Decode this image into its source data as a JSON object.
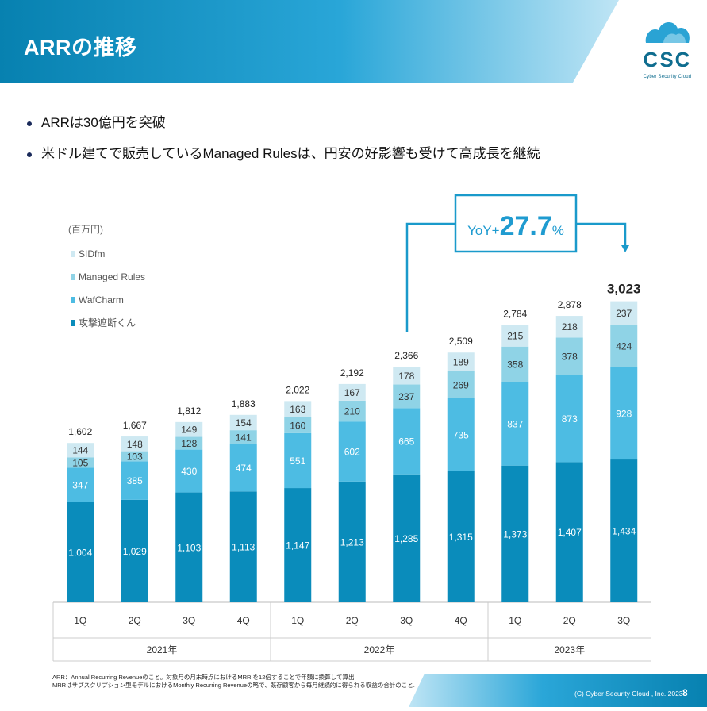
{
  "header": {
    "title": "ARRの推移"
  },
  "logo": {
    "text": "CSC",
    "subtitle": "Cyber Security Cloud"
  },
  "bullets": [
    "ARRは30億円を突破",
    "米ドル建てで販売しているManaged Rulesは、円安の好影響も受けて高成長を継続"
  ],
  "callout": {
    "prefix": "YoY+",
    "value": "27.7",
    "suffix": "%"
  },
  "colors": {
    "header_dark": "#0a86b4",
    "header_light": "#cfeaf6",
    "s1": "#0a8cbb",
    "s2": "#4dbce3",
    "s3": "#8fd3e6",
    "s4": "#cfe9f2",
    "callout_border": "#1a9acb",
    "callout_text": "#1f9bd0"
  },
  "chart_data": {
    "type": "bar",
    "stacked": true,
    "unit_label": "(百万円)",
    "categories": [
      "1Q",
      "2Q",
      "3Q",
      "4Q",
      "1Q",
      "2Q",
      "3Q",
      "4Q",
      "1Q",
      "2Q",
      "3Q"
    ],
    "year_groups": [
      {
        "label": "2021年",
        "count": 4
      },
      {
        "label": "2022年",
        "count": 4
      },
      {
        "label": "2023年",
        "count": 3
      }
    ],
    "series": [
      {
        "name": "攻撃遮断くん",
        "values": [
          1004,
          1029,
          1103,
          1113,
          1147,
          1213,
          1285,
          1315,
          1373,
          1407,
          1434
        ]
      },
      {
        "name": "WafCharm",
        "values": [
          347,
          385,
          430,
          474,
          551,
          602,
          665,
          735,
          837,
          873,
          928
        ]
      },
      {
        "name": "Managed Rules",
        "values": [
          105,
          103,
          128,
          141,
          160,
          210,
          237,
          269,
          358,
          378,
          424
        ]
      },
      {
        "name": "SIDfm",
        "values": [
          144,
          148,
          149,
          154,
          163,
          167,
          178,
          189,
          215,
          218,
          237
        ]
      }
    ],
    "totals": [
      "1,602",
      "1,667",
      "1,812",
      "1,883",
      "2,022",
      "2,192",
      "2,366",
      "2,509",
      "2,784",
      "2,878",
      "3,023"
    ],
    "ylim": [
      0,
      3500
    ],
    "legend_position": "top-left"
  },
  "footnote": {
    "line1": "ARR：Annual Recurring Revenueのこと。対象月の月末時点におけるMRR を12倍することで年額に換算して算出",
    "line2": "MRRはサブスクリプション型モデルにおけるMonthly Recurring Revenueの略で、既存顧客から毎月継続的に得られる収益の合計のこと."
  },
  "footer": {
    "copyright": "(C) Cyber Security Cloud , Inc. 2023",
    "page": "8"
  }
}
